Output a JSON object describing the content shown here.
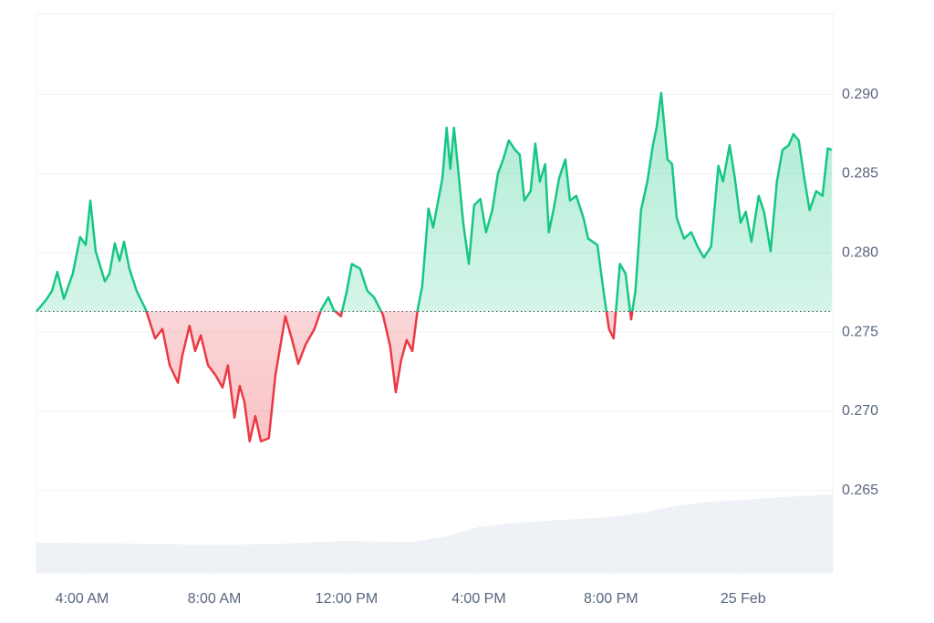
{
  "chart_data": {
    "type": "line",
    "x": [
      2.62,
      2.9,
      3.09,
      3.25,
      3.45,
      3.72,
      3.94,
      4.11,
      4.25,
      4.41,
      4.69,
      4.83,
      4.99,
      5.13,
      5.27,
      5.43,
      5.65,
      5.93,
      6.21,
      6.43,
      6.65,
      6.9,
      7.03,
      7.25,
      7.42,
      7.59,
      7.81,
      8.03,
      8.25,
      8.41,
      8.61,
      8.77,
      8.91,
      9.07,
      9.24,
      9.41,
      9.65,
      9.85,
      10.15,
      10.34,
      10.54,
      10.76,
      11.03,
      11.23,
      11.45,
      11.61,
      11.83,
      12.0,
      12.16,
      12.41,
      12.63,
      12.83,
      13.1,
      13.32,
      13.49,
      13.65,
      13.82,
      13.99,
      14.15,
      14.29,
      14.48,
      14.62,
      14.9,
      15.03,
      15.14,
      15.25,
      15.39,
      15.53,
      15.7,
      15.86,
      16.05,
      16.22,
      16.41,
      16.58,
      16.74,
      16.91,
      17.1,
      17.24,
      17.38,
      17.57,
      17.71,
      17.85,
      18.01,
      18.12,
      18.26,
      18.43,
      18.62,
      18.76,
      18.95,
      19.17,
      19.31,
      19.59,
      19.78,
      19.94,
      20.08,
      20.27,
      20.44,
      20.61,
      20.74,
      20.91,
      21.1,
      21.27,
      21.38,
      21.52,
      21.71,
      21.85,
      21.99,
      22.21,
      22.43,
      22.62,
      22.81,
      23.03,
      23.25,
      23.39,
      23.59,
      23.75,
      23.92,
      24.08,
      24.25,
      24.47,
      24.63,
      24.83,
      25.02,
      25.19,
      25.38,
      25.52,
      25.68,
      25.85,
      26.01,
      26.21,
      26.4,
      26.56,
      26.68
    ],
    "series": [
      {
        "color": "#16c784",
        "down_color": "#ea3943",
        "values": [
          0.2763,
          0.277,
          0.2776,
          0.2788,
          0.2771,
          0.2787,
          0.281,
          0.2805,
          0.2833,
          0.2801,
          0.2782,
          0.2787,
          0.2806,
          0.2795,
          0.2807,
          0.279,
          0.2776,
          0.2764,
          0.2746,
          0.2752,
          0.2729,
          0.2718,
          0.2735,
          0.2754,
          0.2738,
          0.2748,
          0.2729,
          0.2723,
          0.2715,
          0.2729,
          0.2696,
          0.2716,
          0.2706,
          0.2681,
          0.2697,
          0.2681,
          0.2683,
          0.2723,
          0.276,
          0.2746,
          0.273,
          0.2742,
          0.2752,
          0.2764,
          0.2772,
          0.2764,
          0.276,
          0.2775,
          0.2793,
          0.279,
          0.2776,
          0.2772,
          0.2761,
          0.2741,
          0.2712,
          0.2732,
          0.2745,
          0.2738,
          0.2764,
          0.2779,
          0.2828,
          0.2816,
          0.2847,
          0.2879,
          0.2853,
          0.2879,
          0.285,
          0.2819,
          0.2793,
          0.283,
          0.2834,
          0.2813,
          0.2827,
          0.285,
          0.2859,
          0.2871,
          0.2865,
          0.2862,
          0.2833,
          0.2839,
          0.2869,
          0.2845,
          0.2856,
          0.2813,
          0.2827,
          0.2847,
          0.2859,
          0.2833,
          0.2836,
          0.2822,
          0.2809,
          0.2805,
          0.2775,
          0.2752,
          0.2746,
          0.2793,
          0.2787,
          0.2758,
          0.2776,
          0.2827,
          0.2845,
          0.2868,
          0.2879,
          0.2901,
          0.2859,
          0.2856,
          0.2822,
          0.2809,
          0.2813,
          0.2804,
          0.2797,
          0.2804,
          0.2855,
          0.2845,
          0.2868,
          0.2847,
          0.2819,
          0.2826,
          0.2807,
          0.2836,
          0.2826,
          0.2801,
          0.2845,
          0.2865,
          0.2868,
          0.2875,
          0.2871,
          0.2847,
          0.2827,
          0.2839,
          0.2836,
          0.2866,
          0.2865
        ]
      }
    ],
    "volume": {
      "axis": "y2",
      "color": "#eef1f5",
      "x": [
        2.62,
        6,
        8,
        10,
        12,
        14,
        15,
        16,
        17,
        18,
        19,
        20,
        21,
        22,
        23,
        24,
        25,
        26.71
      ],
      "values": [
        5.4,
        5.2,
        5.0,
        5.2,
        5.7,
        5.5,
        6.5,
        8.2,
        8.9,
        9.3,
        9.6,
        10.0,
        10.8,
        12.0,
        12.7,
        13.0,
        13.5,
        14.0
      ]
    },
    "baseline": 0.2763,
    "xlim": [
      2.62,
      26.71
    ],
    "xticks": [
      {
        "value": 4,
        "label": "4:00 AM"
      },
      {
        "value": 8,
        "label": "8:00 AM"
      },
      {
        "value": 12,
        "label": "12:00 PM"
      },
      {
        "value": 16,
        "label": "4:00 PM"
      },
      {
        "value": 20,
        "label": "8:00 PM"
      },
      {
        "value": 24,
        "label": "25 Feb"
      }
    ],
    "ylim": [
      0.2598,
      0.2951
    ],
    "yticks": [
      0.265,
      {
        "value": 0.27,
        "label": "0.270"
      },
      0.275,
      {
        "value": 0.28,
        "label": "0.280"
      },
      0.285,
      {
        "value": 0.29,
        "label": "0.290"
      }
    ],
    "y2lim": [
      0,
      100
    ],
    "grid": true
  }
}
